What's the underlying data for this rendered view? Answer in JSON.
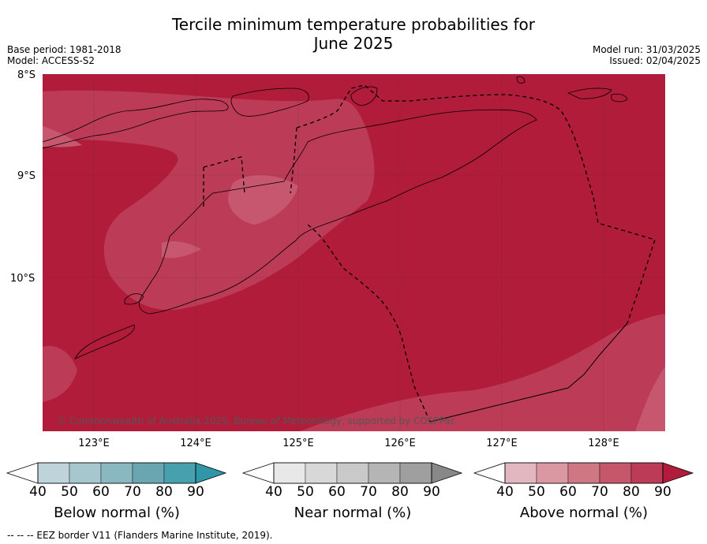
{
  "title_line1": "Tercile minimum temperature probabilities for",
  "title_line2": "June 2025",
  "base_period": "Base period: 1981-2018",
  "model": "Model: ACCESS-S2",
  "model_run": "Model run: 31/03/2025",
  "issued": "Issued: 02/04/2025",
  "map": {
    "lat_labels": [
      "8°S",
      "9°S",
      "10°S"
    ],
    "lon_labels": [
      "123°E",
      "124°E",
      "125°E",
      "126°E",
      "127°E",
      "128°E"
    ],
    "copyright": "© Commonwealth of Australia 2025, Bureau of Meteorology, supported by COSPPac",
    "colors": {
      "above_90": "#b11c3a",
      "above_80": "#bc3b56",
      "above_70": "#c6576f"
    }
  },
  "colorbars": [
    {
      "label": "Below normal (%)",
      "ticks": [
        "40",
        "50",
        "60",
        "70",
        "80",
        "90"
      ],
      "colors": [
        "#ffffff",
        "#bed4da",
        "#a6c7cd",
        "#8ab8c1",
        "#6aa6b2",
        "#47a0ae",
        "#2f97a8"
      ]
    },
    {
      "label": "Near normal (%)",
      "ticks": [
        "40",
        "50",
        "60",
        "70",
        "80",
        "90"
      ],
      "colors": [
        "#ffffff",
        "#e8e8e8",
        "#d8d8d8",
        "#c9c9c9",
        "#b5b5b5",
        "#9f9f9f",
        "#888888"
      ]
    },
    {
      "label": "Above normal (%)",
      "ticks": [
        "40",
        "50",
        "60",
        "70",
        "80",
        "90"
      ],
      "colors": [
        "#ffffff",
        "#e3b7bf",
        "#da98a3",
        "#cf7883",
        "#c6576a",
        "#bc3b56",
        "#b11c3a"
      ]
    }
  ],
  "footer": "--  --  -- EEZ border V11 (Flanders Marine Institute, 2019)."
}
